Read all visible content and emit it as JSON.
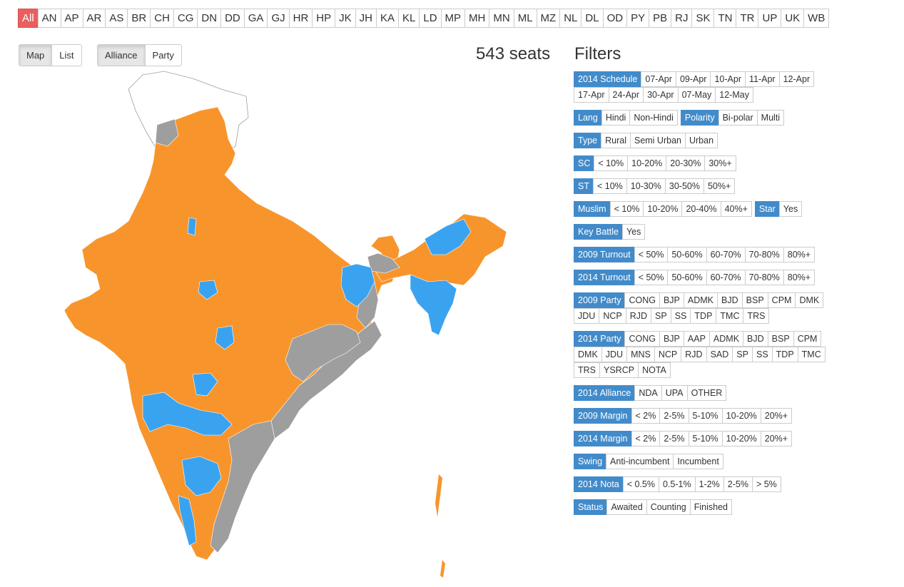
{
  "states": [
    "All",
    "AN",
    "AP",
    "AR",
    "AS",
    "BR",
    "CH",
    "CG",
    "DN",
    "DD",
    "GA",
    "GJ",
    "HR",
    "HP",
    "JK",
    "JH",
    "KA",
    "KL",
    "LD",
    "MP",
    "MH",
    "MN",
    "ML",
    "MZ",
    "NL",
    "DL",
    "OD",
    "PY",
    "PB",
    "RJ",
    "SK",
    "TN",
    "TR",
    "UP",
    "UK",
    "WB"
  ],
  "view_toggle": [
    "Map",
    "List"
  ],
  "grouping_toggle": [
    "Alliance",
    "Party"
  ],
  "seats_text": "543 seats",
  "filters_title": "Filters",
  "colors": {
    "nda": "#f7952c",
    "upa": "#3aa3f0",
    "other": "#9e9e9e",
    "active_state": "#e95f5f",
    "filter_label": "#428bca"
  },
  "filters": [
    {
      "groups": [
        {
          "label": "2014 Schedule",
          "options": [
            "07-Apr",
            "09-Apr",
            "10-Apr",
            "11-Apr",
            "12-Apr",
            "17-Apr",
            "24-Apr",
            "30-Apr",
            "07-May",
            "12-May"
          ]
        }
      ]
    },
    {
      "groups": [
        {
          "label": "Lang",
          "options": [
            "Hindi",
            "Non-Hindi"
          ]
        },
        {
          "label": "Polarity",
          "options": [
            "Bi-polar",
            "Multi"
          ]
        }
      ]
    },
    {
      "groups": [
        {
          "label": "Type",
          "options": [
            "Rural",
            "Semi Urban",
            "Urban"
          ]
        }
      ]
    },
    {
      "groups": [
        {
          "label": "SC",
          "options": [
            "< 10%",
            "10-20%",
            "20-30%",
            "30%+"
          ]
        }
      ]
    },
    {
      "groups": [
        {
          "label": "ST",
          "options": [
            "< 10%",
            "10-30%",
            "30-50%",
            "50%+"
          ]
        }
      ]
    },
    {
      "groups": [
        {
          "label": "Muslim",
          "options": [
            "< 10%",
            "10-20%",
            "20-40%",
            "40%+"
          ]
        },
        {
          "label": "Star",
          "options": [
            "Yes"
          ]
        }
      ]
    },
    {
      "groups": [
        {
          "label": "Key Battle",
          "options": [
            "Yes"
          ]
        }
      ]
    },
    {
      "groups": [
        {
          "label": "2009 Turnout",
          "options": [
            "< 50%",
            "50-60%",
            "60-70%",
            "70-80%",
            "80%+"
          ]
        }
      ]
    },
    {
      "groups": [
        {
          "label": "2014 Turnout",
          "options": [
            "< 50%",
            "50-60%",
            "60-70%",
            "70-80%",
            "80%+"
          ]
        }
      ]
    },
    {
      "groups": [
        {
          "label": "2009 Party",
          "options": [
            "CONG",
            "BJP",
            "ADMK",
            "BJD",
            "BSP",
            "CPM",
            "DMK",
            "JDU",
            "NCP",
            "RJD",
            "SP",
            "SS",
            "TDP",
            "TMC",
            "TRS"
          ]
        }
      ]
    },
    {
      "groups": [
        {
          "label": "2014 Party",
          "options": [
            "CONG",
            "BJP",
            "AAP",
            "ADMK",
            "BJD",
            "BSP",
            "CPM",
            "DMK",
            "JDU",
            "MNS",
            "NCP",
            "RJD",
            "SAD",
            "SP",
            "SS",
            "TDP",
            "TMC",
            "TRS",
            "YSRCP",
            "NOTA"
          ]
        }
      ]
    },
    {
      "groups": [
        {
          "label": "2014 Alliance",
          "options": [
            "NDA",
            "UPA",
            "OTHER"
          ]
        }
      ]
    },
    {
      "groups": [
        {
          "label": "2009 Margin",
          "options": [
            "< 2%",
            "2-5%",
            "5-10%",
            "10-20%",
            "20%+"
          ]
        }
      ]
    },
    {
      "groups": [
        {
          "label": "2014 Margin",
          "options": [
            "< 2%",
            "2-5%",
            "5-10%",
            "10-20%",
            "20%+"
          ]
        }
      ]
    },
    {
      "groups": [
        {
          "label": "Swing",
          "options": [
            "Anti-incumbent",
            "Incumbent"
          ]
        }
      ]
    },
    {
      "groups": [
        {
          "label": "2014 Nota",
          "options": [
            "< 0.5%",
            "0.5-1%",
            "1-2%",
            "2-5%",
            "> 5%"
          ]
        }
      ]
    },
    {
      "groups": [
        {
          "label": "Status",
          "options": [
            "Awaited",
            "Counting",
            "Finished"
          ]
        }
      ]
    }
  ]
}
